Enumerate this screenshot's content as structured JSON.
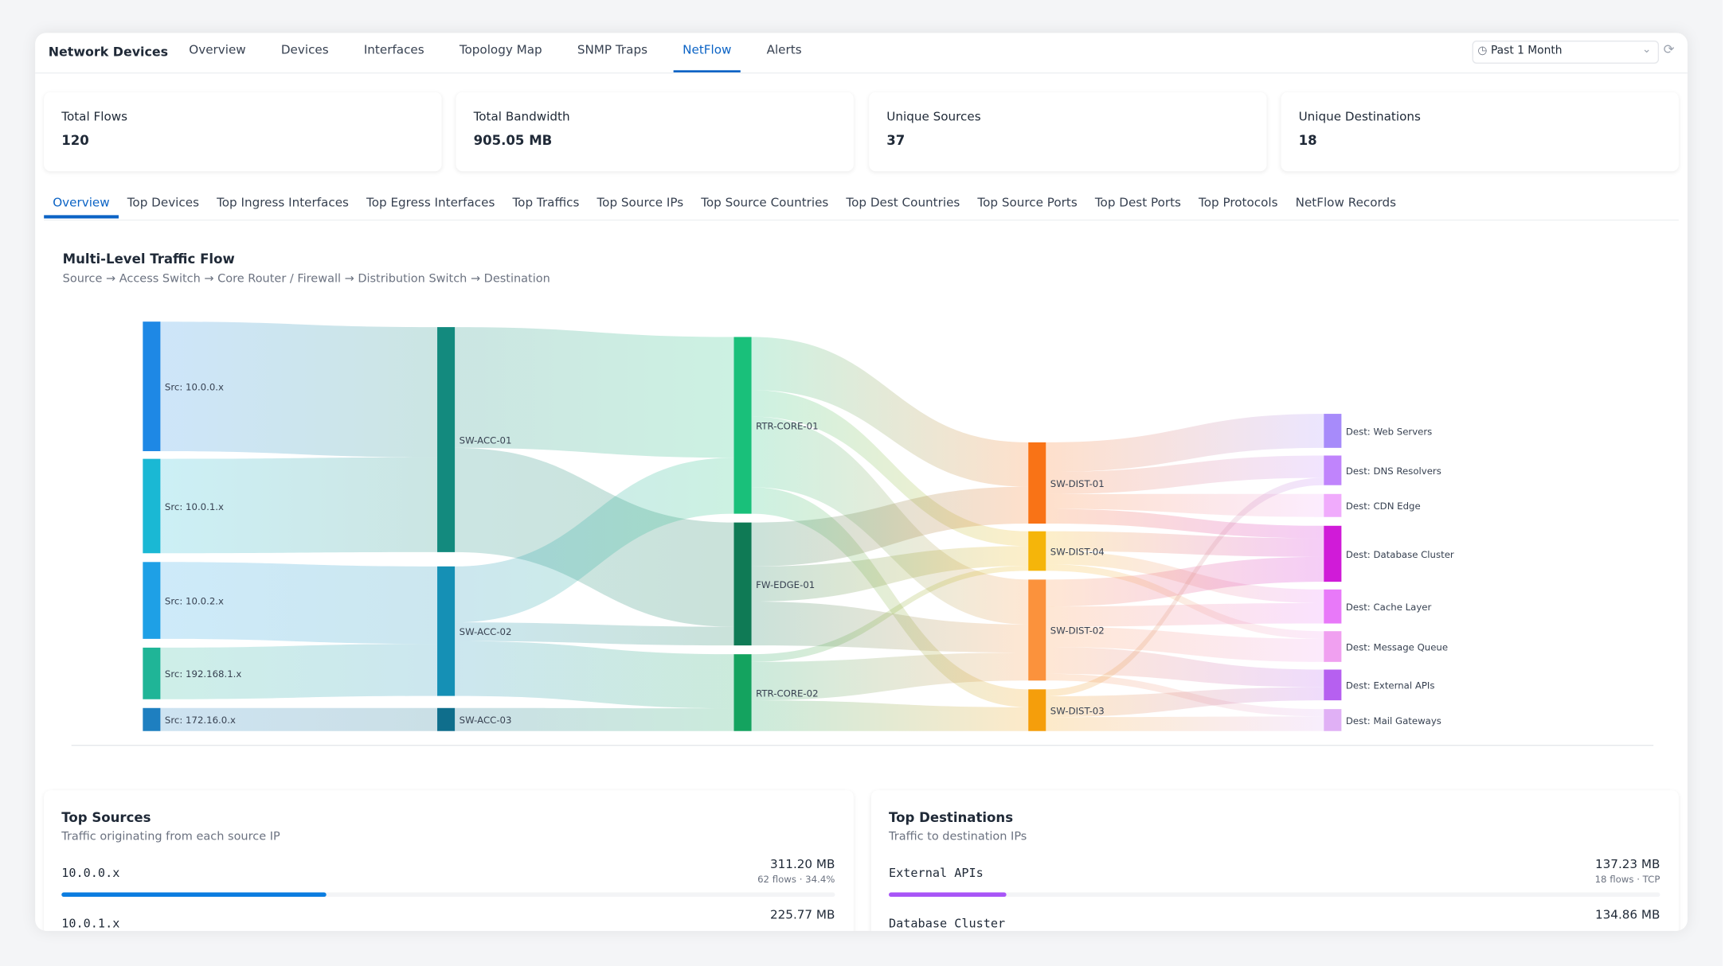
{
  "header": {
    "title": "Network Devices",
    "nav": [
      "Overview",
      "Devices",
      "Interfaces",
      "Topology Map",
      "SNMP Traps",
      "NetFlow",
      "Alerts"
    ],
    "time_range": "Past 1 Month"
  },
  "stats": [
    {
      "label": "Total Flows",
      "value": 120
    },
    {
      "label": "Total Bandwidth",
      "value": "905.05 MB"
    },
    {
      "label": "Unique Sources",
      "value": 37
    },
    {
      "label": "Unique Destinations",
      "value": 18
    }
  ],
  "tabs": [
    "Overview",
    "Top Devices",
    "Top Ingress Interfaces",
    "Top Egress Interfaces",
    "Top Traffics",
    "Top Source IPs",
    "Top Source Countries",
    "Top Dest Countries",
    "Top Source Ports",
    "Top Dest Ports",
    "Top Protocols",
    "NetFlow Records"
  ],
  "traffic_flow": {
    "title": "Multi-Level Traffic Flow",
    "subtitle": "Source → Access Switch → Core Router / Firewall → Distribution Switch → Destination",
    "nodes": [
      "Src: 10.0.0.x",
      "Src: 10.0.1.x",
      "Src: 10.0.2.x",
      "Src: 192.168.1.x",
      "Src: 172.16.0.x",
      "SW-ACC-01",
      "SW-ACC-02",
      "SW-ACC-03",
      "RTR-CORE-01",
      "FW-EDGE-01",
      "RTR-CORE-02",
      "SW-DIST-01",
      "SW-DIST-04",
      "SW-DIST-02",
      "SW-DIST-03",
      "Dest: Web Servers",
      "Dest: DNS Resolvers",
      "Dest: CDN Edge",
      "Dest: Database Cluster",
      "Dest: Cache Layer",
      "Dest: Message Queue",
      "Dest: External APIs",
      "Dest: Mail Gateways"
    ]
  },
  "top_sources": {
    "title": "Top Sources",
    "subtitle": "Traffic originating from each source IP",
    "items": [
      {
        "name": "10.0.0.x",
        "value": "311.20 MB",
        "meta": "62 flows · 34.4%"
      },
      {
        "name": "10.0.1.x",
        "value": "225.77 MB"
      }
    ]
  },
  "top_destinations": {
    "title": "Top Destinations",
    "subtitle": "Traffic to destination IPs",
    "items": [
      {
        "name": "External APIs",
        "value": "137.23 MB",
        "meta": "18 flows · TCP"
      },
      {
        "name": "Database Cluster",
        "value": "134.86 MB"
      }
    ]
  }
}
